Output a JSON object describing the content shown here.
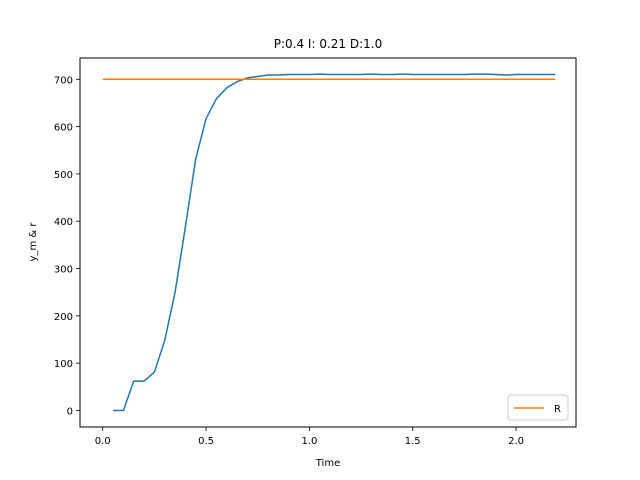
{
  "chart_data": {
    "type": "line",
    "title": "P:0.4 I: 0.21 D:1.0",
    "xlabel": "Time",
    "ylabel": "y_m & r",
    "xlim": [
      -0.11,
      2.29
    ],
    "ylim": [
      -35,
      745
    ],
    "xticks": [
      0.0,
      0.5,
      1.0,
      1.5,
      2.0
    ],
    "xtick_labels": [
      "0.0",
      "0.5",
      "1.0",
      "1.5",
      "2.0"
    ],
    "yticks": [
      0,
      100,
      200,
      300,
      400,
      500,
      600,
      700
    ],
    "ytick_labels": [
      "0",
      "100",
      "200",
      "300",
      "400",
      "500",
      "600",
      "700"
    ],
    "grid": false,
    "legend_position": "lower-right",
    "series": [
      {
        "name": "",
        "color": "#1f77b4",
        "x": [
          0.05,
          0.1,
          0.15,
          0.2,
          0.25,
          0.3,
          0.35,
          0.4,
          0.45,
          0.5,
          0.55,
          0.6,
          0.65,
          0.7,
          0.75,
          0.8,
          0.85,
          0.9,
          0.95,
          1.0,
          1.05,
          1.1,
          1.15,
          1.2,
          1.25,
          1.3,
          1.35,
          1.4,
          1.45,
          1.5,
          1.55,
          1.6,
          1.65,
          1.7,
          1.75,
          1.8,
          1.85,
          1.9,
          1.95,
          2.0,
          2.05,
          2.1,
          2.15,
          2.19
        ],
        "y": [
          0,
          0,
          62,
          62,
          81,
          148,
          250,
          388,
          532,
          617,
          659,
          682,
          695,
          703,
          706,
          709,
          709,
          710,
          710,
          710,
          711,
          710,
          710,
          710,
          710,
          711,
          710,
          710,
          711,
          710,
          710,
          710,
          710,
          710,
          710,
          711,
          711,
          710,
          709,
          710,
          710,
          710,
          710,
          710
        ]
      },
      {
        "name": "R",
        "color": "#ff7f0e",
        "x": [
          0.0,
          2.19
        ],
        "y": [
          700,
          700
        ]
      }
    ]
  }
}
